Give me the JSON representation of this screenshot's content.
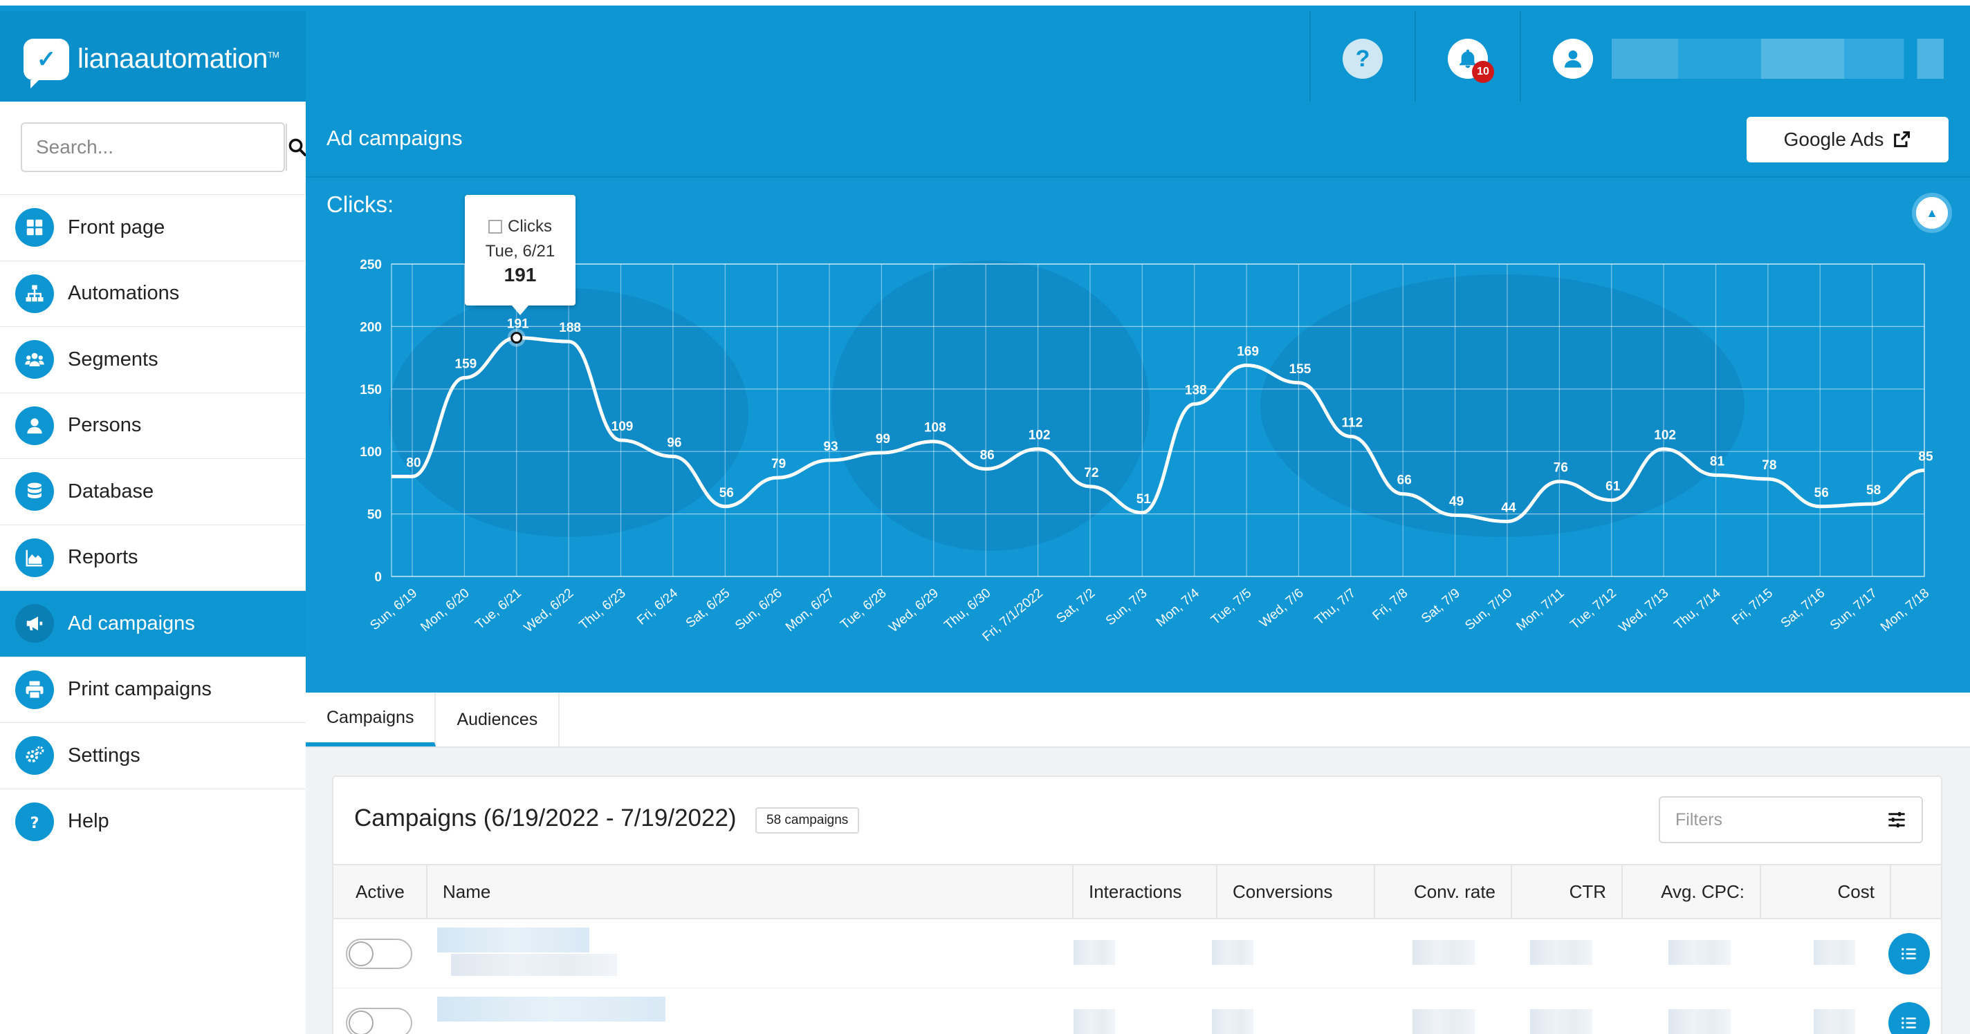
{
  "app": {
    "logo_word1": "liana",
    "logo_word2": "automation",
    "logo_tm": "TM"
  },
  "header": {
    "notification_count": "10"
  },
  "sidebar": {
    "search_placeholder": "Search...",
    "items": [
      {
        "label": "Front page",
        "icon": "grid-icon"
      },
      {
        "label": "Automations",
        "icon": "sitemap-icon"
      },
      {
        "label": "Segments",
        "icon": "users-icon"
      },
      {
        "label": "Persons",
        "icon": "user-icon"
      },
      {
        "label": "Database",
        "icon": "database-icon"
      },
      {
        "label": "Reports",
        "icon": "area-chart-icon"
      },
      {
        "label": "Ad campaigns",
        "icon": "megaphone-icon",
        "active": true
      },
      {
        "label": "Print campaigns",
        "icon": "printer-icon"
      },
      {
        "label": "Settings",
        "icon": "gears-icon"
      },
      {
        "label": "Help",
        "icon": "question-icon"
      }
    ]
  },
  "page": {
    "title": "Ad campaigns",
    "google_ads_label": "Google Ads"
  },
  "chart": {
    "label": "Clicks:"
  },
  "tooltip": {
    "series": "Clicks",
    "date": "Tue, 6/21",
    "value": "191"
  },
  "chart_data": {
    "type": "line",
    "series": [
      {
        "name": "Clicks",
        "values": [
          80,
          159,
          191,
          188,
          109,
          96,
          56,
          79,
          93,
          99,
          108,
          86,
          102,
          72,
          51,
          138,
          169,
          155,
          112,
          66,
          49,
          44,
          76,
          61,
          102,
          81,
          78,
          56,
          58,
          85
        ]
      }
    ],
    "categories": [
      "Sun, 6/19",
      "Mon, 6/20",
      "Tue, 6/21",
      "Wed, 6/22",
      "Thu, 6/23",
      "Fri, 6/24",
      "Sat, 6/25",
      "Sun, 6/26",
      "Mon, 6/27",
      "Tue, 6/28",
      "Wed, 6/29",
      "Thu, 6/30",
      "Fri, 7/1/2022",
      "Sat, 7/2",
      "Sun, 7/3",
      "Mon, 7/4",
      "Tue, 7/5",
      "Wed, 7/6",
      "Thu, 7/7",
      "Fri, 7/8",
      "Sat, 7/9",
      "Sun, 7/10",
      "Mon, 7/11",
      "Tue, 7/12",
      "Wed, 7/13",
      "Thu, 7/14",
      "Fri, 7/15",
      "Sat, 7/16",
      "Sun, 7/17",
      "Mon, 7/18"
    ],
    "ylim": [
      0,
      250
    ],
    "yticks": [
      0,
      50,
      100,
      150,
      200,
      250
    ],
    "highlight_index": 2,
    "grid": true,
    "line_color": "#ffffff"
  },
  "tabs": [
    {
      "label": "Campaigns",
      "active": true
    },
    {
      "label": "Audiences"
    }
  ],
  "campaigns": {
    "title": "Campaigns (6/19/2022 - 7/19/2022)",
    "count_badge": "58 campaigns",
    "filters_placeholder": "Filters",
    "columns": [
      "Active",
      "Name",
      "Interactions",
      "Conversions",
      "Conv. rate",
      "CTR",
      "Avg. CPC:",
      "Cost"
    ]
  },
  "colors": {
    "primary": "#0d96d2",
    "badge": "#d01a1a"
  }
}
